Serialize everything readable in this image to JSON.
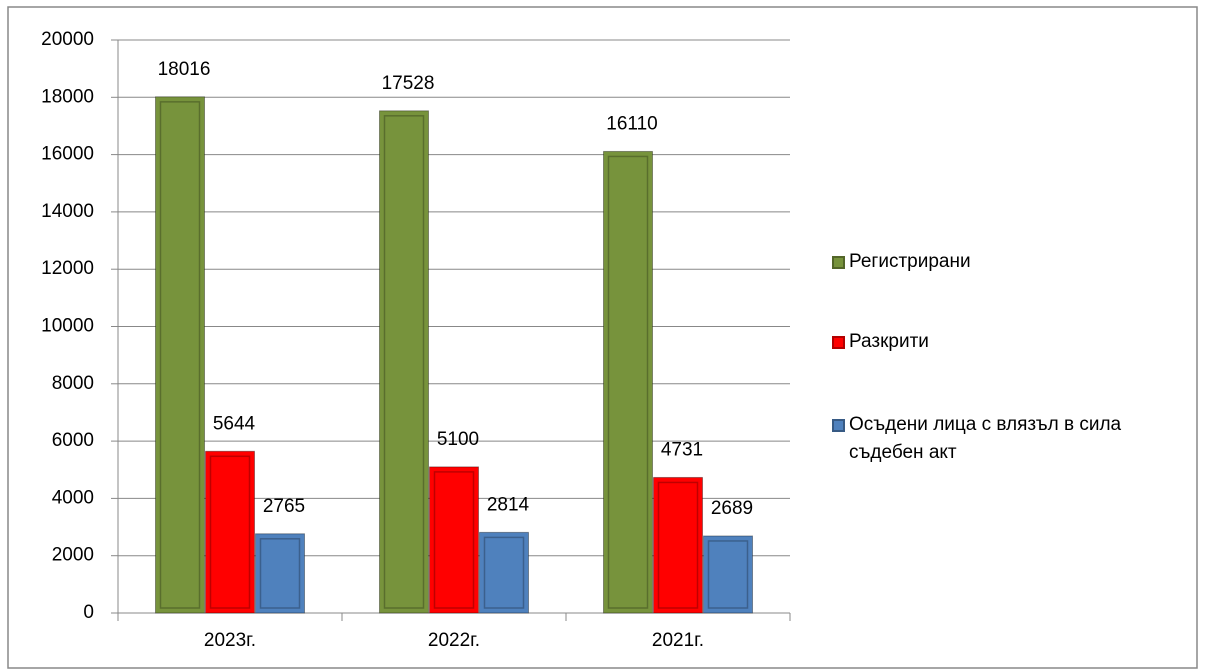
{
  "chart_data": {
    "type": "bar",
    "categories": [
      "2023г.",
      "2022г.",
      "2021г."
    ],
    "series": [
      {
        "name": "Регистрирани",
        "color": "#77933c",
        "values": [
          18016,
          17528,
          16110
        ]
      },
      {
        "name": "Разкрити",
        "color": "#ff0000",
        "values": [
          5644,
          5100,
          4731
        ]
      },
      {
        "name": "Осъдени лица с влязъл в сила съдебен акт",
        "color": "#4f81bd",
        "values": [
          2765,
          2814,
          2689
        ]
      }
    ],
    "ylim": [
      0,
      20000
    ],
    "yticks": [
      0,
      2000,
      4000,
      6000,
      8000,
      10000,
      12000,
      14000,
      16000,
      18000,
      20000
    ],
    "grid": true,
    "legend": "right"
  }
}
